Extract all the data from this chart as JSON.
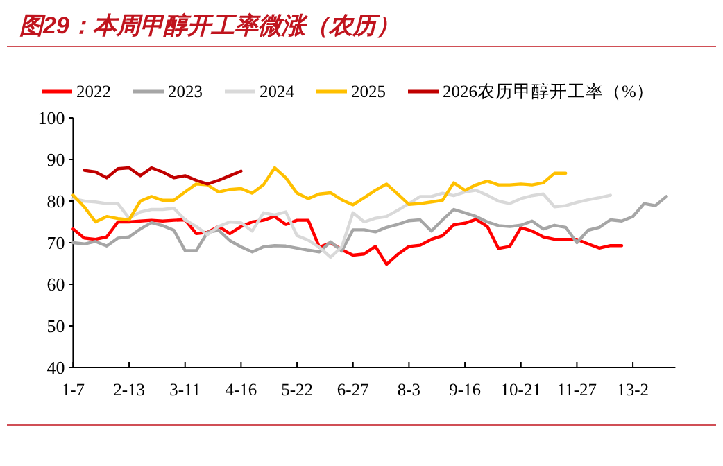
{
  "chart_data": {
    "type": "line",
    "title": "图29：本周甲醇开工率微涨（农历）",
    "categories": [
      "1-7",
      null,
      null,
      null,
      null,
      "2-13",
      null,
      null,
      null,
      null,
      "3-11",
      null,
      null,
      null,
      null,
      "4-16",
      null,
      null,
      null,
      null,
      "5-22",
      null,
      null,
      null,
      null,
      "6-27",
      null,
      null,
      null,
      null,
      "8-3",
      null,
      null,
      null,
      null,
      "9-16",
      null,
      null,
      null,
      null,
      "10-21",
      null,
      null,
      null,
      null,
      "11-27",
      null,
      null,
      null,
      null,
      "13-2",
      null,
      null,
      null
    ],
    "ylim": [
      40,
      100
    ],
    "yticks": [
      40,
      50,
      60,
      70,
      80,
      90,
      100
    ],
    "grid": false,
    "legend": "top",
    "marker": "none",
    "line_style": "solid",
    "series": [
      {
        "name": "2022",
        "color": "#ff0000",
        "values": [
          73.3,
          71.1,
          70.8,
          71.4,
          75,
          75,
          75.2,
          75.4,
          75.2,
          75.4,
          75.5,
          72.2,
          72.5,
          73.9,
          72.2,
          73.9,
          75,
          75.4,
          76.3,
          74.4,
          75.4,
          75.4,
          68.9,
          70,
          68.3,
          67,
          67.3,
          69.1,
          64.8,
          67.2,
          69.1,
          69.4,
          70.8,
          71.7,
          74.3,
          74.7,
          75.6,
          73.9,
          68.6,
          69.1,
          73.6,
          72.8,
          71.4,
          70.8,
          70.8,
          70.8,
          69.7,
          68.7,
          69.3,
          69.3,
          null,
          null,
          null,
          null
        ]
      },
      {
        "name": "2023",
        "color": "#a6a6a6",
        "values": [
          70,
          69.7,
          70.3,
          69.2,
          71.1,
          71.4,
          73.3,
          74.8,
          74.1,
          73,
          68.1,
          68.1,
          72.5,
          73,
          70.5,
          69,
          67.8,
          69,
          69.3,
          69.2,
          68.7,
          68.2,
          67.8,
          70.2,
          68,
          73.1,
          73.1,
          72.6,
          73.7,
          74.4,
          75.3,
          75.5,
          72.8,
          75.5,
          78,
          77.2,
          76.3,
          75,
          74.1,
          73.9,
          74.2,
          75.2,
          73.3,
          74.2,
          73.7,
          70,
          73,
          73.7,
          75.5,
          75.2,
          76.3,
          79.4,
          78.9,
          81.1
        ]
      },
      {
        "name": "2024",
        "color": "#d9d9d9",
        "values": [
          80.6,
          80,
          79.8,
          79.4,
          79.4,
          75.9,
          77.4,
          78,
          78,
          78.3,
          75.5,
          73.9,
          71.9,
          73.9,
          75,
          74.8,
          72.8,
          77.2,
          76.7,
          77.4,
          71.7,
          70.6,
          68.9,
          66.5,
          69,
          77.2,
          75,
          75.9,
          76.3,
          77.8,
          79.4,
          81.1,
          81.1,
          81.9,
          81.3,
          82.2,
          82.6,
          81.4,
          80,
          79.4,
          80.6,
          81.3,
          81.7,
          78.6,
          78.9,
          79.7,
          80.3,
          80.8,
          81.4,
          null,
          null,
          null,
          null,
          null
        ]
      },
      {
        "name": "2025",
        "color": "#ffc000",
        "values": [
          81.4,
          78.6,
          75,
          76.3,
          75.8,
          75.5,
          80,
          81.1,
          80.2,
          80.2,
          82.2,
          84.1,
          83.9,
          82.2,
          82.8,
          83,
          81.9,
          83.9,
          88,
          85.6,
          81.9,
          80.6,
          81.7,
          82,
          80.3,
          79.1,
          80.8,
          82.6,
          84.1,
          81.7,
          79.2,
          79.4,
          79.8,
          80.2,
          84.4,
          82.6,
          83.9,
          84.8,
          83.9,
          83.9,
          84.1,
          83.9,
          84.4,
          86.7,
          86.7,
          null,
          null,
          null,
          null,
          null,
          null,
          null,
          null,
          null
        ]
      },
      {
        "name": "2026农历甲醇开工率（%）",
        "color": "#c00000",
        "values": [
          null,
          87.4,
          87,
          85.6,
          87.8,
          88,
          86.1,
          88,
          87,
          85.6,
          86.1,
          85,
          84.1,
          85,
          86.1,
          87.2,
          null,
          null,
          null,
          null,
          null,
          null,
          null,
          null,
          null,
          null,
          null,
          null,
          null,
          null,
          null,
          null,
          null,
          null,
          null,
          null,
          null,
          null,
          null,
          null,
          null,
          null,
          null,
          null,
          null,
          null,
          null,
          null,
          null,
          null,
          null,
          null,
          null,
          null
        ]
      }
    ]
  }
}
